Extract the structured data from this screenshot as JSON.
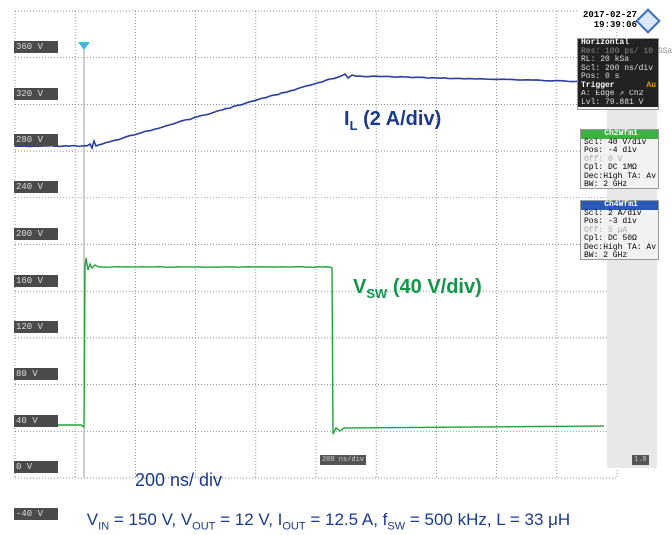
{
  "scope": {
    "date": "2017-02-27",
    "time": "19:39:06",
    "y_labels": [
      "360 V",
      "320 V",
      "280 V",
      "240 V",
      "200 V",
      "160 V",
      "120 V",
      "80 V",
      "40 V",
      "0 V",
      "-40 V"
    ],
    "horizontal_panel": {
      "title": "Horizontal",
      "rows": [
        "Res: 100 ps/ 10 GSa",
        "RL: 20 kSa",
        "Scl: 200 ns/div",
        "Pos: 0 s"
      ]
    },
    "trigger_panel": {
      "title": "Trigger",
      "mode": "Au",
      "rows": [
        "A: Edge ↗ Ch2",
        "Lvl: 79.881 V"
      ]
    },
    "ch2_panel": {
      "title": "Ch2Wfm1",
      "rows": [
        "Scl: 40 V/div",
        "Pos: -4 div",
        "Off: 0 V",
        "Cpl: DC 1MΩ",
        "Dec:High TA: Av",
        "BW: 2 GHz"
      ]
    },
    "ch4_panel": {
      "title": "Ch4Wfm1",
      "rows": [
        "Scl: 2 A/div",
        "Pos: -3 div",
        "Off: 5 μA",
        "Cpl: DC 50Ω",
        "Dec:High TA: Av",
        "BW: 2 GHz"
      ]
    },
    "time_badge": "200 ns/div",
    "right_badge": "1.0"
  },
  "annotations": {
    "il_main": "I",
    "il_sub": "L",
    "il_rest": " (2 A/div)",
    "vsw_main": "V",
    "vsw_sub": "SW",
    "vsw_rest": " (40 V/div)",
    "timebase": "200 ns/ div"
  },
  "caption": {
    "vin": "V",
    "vin_sub": "IN",
    "vin_val": " = 150 V, ",
    "vout": "V",
    "vout_sub": "OUT",
    "vout_val": " = 12 V, ",
    "iout": "I",
    "iout_sub": "OUT",
    "iout_val": " = 12.5 A, ",
    "fsw": "f",
    "fsw_sub": "SW",
    "fsw_val": " = 500 kHz, L = 33 μH"
  },
  "colors": {
    "inductor_current": "#2a3f9e",
    "switch_voltage": "#22a33c",
    "trigger_marker": "#3cb8d8",
    "grid": "#6a6a6a",
    "annotation_il": "#1a3a8c",
    "annotation_vsw": "#12964a"
  }
}
